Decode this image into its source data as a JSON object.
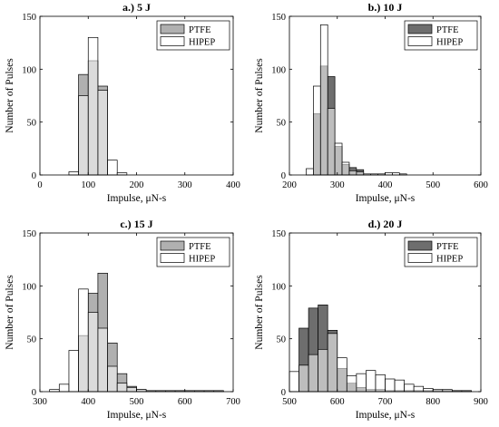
{
  "chart_data": [
    {
      "type": "bar",
      "title": "a.) 5 J",
      "xlabel": "Impulse, μN-s",
      "ylabel": "Number of Pulses",
      "xlim": [
        0,
        400
      ],
      "ylim": [
        0,
        150
      ],
      "xticks": [
        "0",
        "100",
        "200",
        "300",
        "400"
      ],
      "yticks": [
        "0",
        "50",
        "100",
        "150"
      ],
      "bin_width": 20,
      "legend": [
        "PTFE",
        "HIPEP"
      ],
      "legend_position": "top-right",
      "series": [
        {
          "name": "PTFE",
          "color": "#b0b0b0",
          "x": [
            80,
            100,
            120
          ],
          "values": [
            95,
            108,
            84
          ]
        },
        {
          "name": "HIPEP",
          "color": "#ffffff",
          "x": [
            60,
            80,
            100,
            120,
            140,
            160
          ],
          "values": [
            3,
            75,
            130,
            80,
            14,
            2
          ]
        }
      ]
    },
    {
      "type": "bar",
      "title": "b.) 10 J",
      "xlabel": "Impulse, μN-s",
      "ylabel": "Number of Pulses",
      "xlim": [
        200,
        600
      ],
      "ylim": [
        0,
        150
      ],
      "xticks": [
        "200",
        "300",
        "400",
        "500",
        "600"
      ],
      "yticks": [
        "0",
        "50",
        "100",
        "150"
      ],
      "bin_width": 15,
      "legend": [
        "PTFE",
        "HIPEP"
      ],
      "legend_position": "top-right",
      "series": [
        {
          "name": "PTFE",
          "color": "#6e6e6e",
          "x": [
            250,
            265,
            280,
            295,
            310,
            325,
            340
          ],
          "values": [
            58,
            103,
            93,
            27,
            10,
            7,
            5
          ]
        },
        {
          "name": "HIPEP",
          "color": "#ffffff",
          "x": [
            235,
            250,
            265,
            280,
            295,
            310,
            325,
            340,
            355,
            370,
            385,
            400,
            415,
            430
          ],
          "values": [
            6,
            84,
            142,
            63,
            30,
            12,
            4,
            3,
            1,
            1,
            1,
            2,
            2,
            1
          ]
        }
      ]
    },
    {
      "type": "bar",
      "title": "c.) 15 J",
      "xlabel": "Impulse, μN-s",
      "ylabel": "Number of Pulses",
      "xlim": [
        300,
        700
      ],
      "ylim": [
        0,
        150
      ],
      "xticks": [
        "300",
        "400",
        "500",
        "600",
        "700"
      ],
      "yticks": [
        "0",
        "50",
        "100",
        "150"
      ],
      "bin_width": 20,
      "legend": [
        "PTFE",
        "HIPEP"
      ],
      "legend_position": "top-right",
      "series": [
        {
          "name": "PTFE",
          "color": "#b0b0b0",
          "x": [
            380,
            400,
            420,
            440,
            460,
            480,
            500,
            520,
            540,
            560,
            580,
            600,
            620,
            640,
            660
          ],
          "values": [
            53,
            93,
            112,
            46,
            17,
            5,
            2,
            1,
            1,
            1,
            1,
            1,
            1,
            1,
            1
          ]
        },
        {
          "name": "HIPEP",
          "color": "#ffffff",
          "x": [
            320,
            340,
            360,
            380,
            400,
            420,
            440,
            460,
            480,
            500
          ],
          "values": [
            2,
            7,
            39,
            97,
            75,
            60,
            24,
            8,
            4,
            2
          ]
        }
      ]
    },
    {
      "type": "bar",
      "title": "d.) 20 J",
      "xlabel": "Impulse, μN-s",
      "ylabel": "Number of Pulses",
      "xlim": [
        500,
        900
      ],
      "ylim": [
        0,
        150
      ],
      "xticks": [
        "500",
        "600",
        "700",
        "800",
        "900"
      ],
      "yticks": [
        "0",
        "50",
        "100",
        "150"
      ],
      "bin_width": 20,
      "legend": [
        "PTFE",
        "HIPEP"
      ],
      "legend_position": "top-right",
      "series": [
        {
          "name": "PTFE",
          "color": "#6e6e6e",
          "x": [
            520,
            540,
            560,
            580,
            600,
            620,
            640,
            660,
            680,
            700,
            720,
            740,
            760,
            780,
            800,
            820,
            840,
            860
          ],
          "values": [
            60,
            79,
            82,
            58,
            22,
            8,
            4,
            2,
            2,
            1,
            1,
            1,
            1,
            1,
            1,
            1,
            1,
            1
          ]
        },
        {
          "name": "HIPEP",
          "color": "#ffffff",
          "x": [
            500,
            520,
            540,
            560,
            580,
            600,
            620,
            640,
            660,
            680,
            700,
            720,
            740,
            760,
            780,
            800,
            820,
            840,
            860
          ],
          "values": [
            19,
            25,
            35,
            40,
            55,
            32,
            15,
            17,
            20,
            16,
            12,
            11,
            7,
            5,
            3,
            2,
            2,
            1,
            1
          ]
        }
      ]
    }
  ]
}
